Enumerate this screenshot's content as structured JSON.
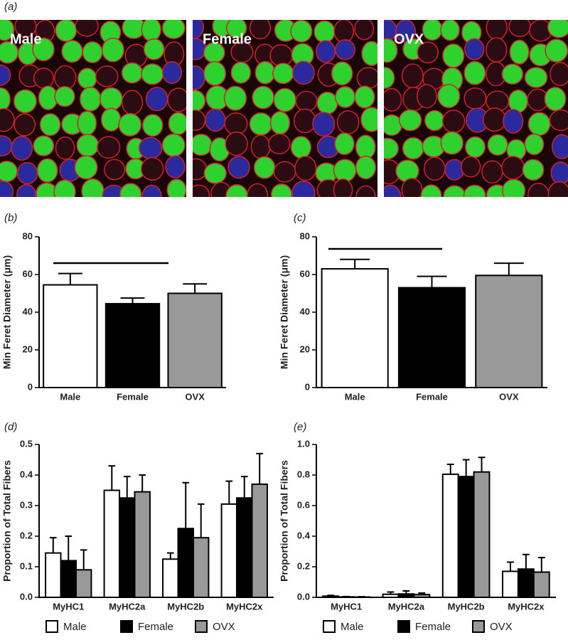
{
  "figure_label": "(a)",
  "images": [
    "Male",
    "Female",
    "OVX"
  ],
  "chart_data": [
    {
      "type": "bar",
      "panel_label": "(b)",
      "y_label": "Min Feret Diameter (μm)",
      "categories": [
        "Male",
        "Female",
        "OVX"
      ],
      "values": [
        54.5,
        44.5,
        50
      ],
      "errors": [
        6,
        3,
        5
      ],
      "colors": [
        "#ffffff",
        "#000000",
        "#999999"
      ],
      "ylim": [
        0,
        80
      ],
      "yticks": [
        0,
        20,
        40,
        60,
        80
      ]
    },
    {
      "type": "bar",
      "panel_label": "(c)",
      "y_label": "Min Feret Diameter (μm)",
      "categories": [
        "Male",
        "Female",
        "OVX"
      ],
      "values": [
        63,
        53,
        59.5
      ],
      "errors": [
        5,
        6,
        6.5
      ],
      "colors": [
        "#ffffff",
        "#000000",
        "#999999"
      ],
      "ylim": [
        0,
        80
      ],
      "yticks": [
        0,
        20,
        40,
        60,
        80
      ]
    },
    {
      "type": "bar",
      "panel_label": "(d)",
      "y_label": "Proportion of Total Fibers",
      "categories": [
        "MyHC1",
        "MyHC2a",
        "MyHC2b",
        "MyHC2x"
      ],
      "series": [
        {
          "name": "Male",
          "color": "#ffffff",
          "values": [
            0.145,
            0.35,
            0.125,
            0.305
          ],
          "errors": [
            0.05,
            0.08,
            0.02,
            0.075
          ]
        },
        {
          "name": "Female",
          "color": "#000000",
          "values": [
            0.12,
            0.325,
            0.225,
            0.325
          ],
          "errors": [
            0.08,
            0.07,
            0.15,
            0.07
          ]
        },
        {
          "name": "OVX",
          "color": "#999999",
          "values": [
            0.09,
            0.345,
            0.195,
            0.37
          ],
          "errors": [
            0.065,
            0.055,
            0.11,
            0.1
          ]
        }
      ],
      "ylim": [
        0,
        0.5
      ],
      "yticks": [
        {
          "value": 0,
          "label": "0.0"
        },
        0.1,
        0.2,
        0.3,
        0.4,
        0.5
      ],
      "legend": "bottom"
    },
    {
      "type": "bar",
      "panel_label": "(e)",
      "y_label": "Proportion of Total Fibers",
      "categories": [
        "MyHC1",
        "MyHC2a",
        "MyHC2b",
        "MyHC2x"
      ],
      "series": [
        {
          "name": "Male",
          "color": "#ffffff",
          "values": [
            0.008,
            0.02,
            0.805,
            0.17
          ],
          "errors": [
            0.005,
            0.015,
            0.065,
            0.06
          ]
        },
        {
          "name": "Female",
          "color": "#000000",
          "values": [
            0.003,
            0.022,
            0.79,
            0.185
          ],
          "errors": [
            0.002,
            0.02,
            0.11,
            0.095
          ]
        },
        {
          "name": "OVX",
          "color": "#999999",
          "values": [
            0.002,
            0.018,
            0.82,
            0.165
          ],
          "errors": [
            0.002,
            0.01,
            0.095,
            0.095
          ]
        }
      ],
      "ylim": [
        0,
        1
      ],
      "yticks": [
        {
          "value": 0,
          "label": "0.0"
        },
        0.2,
        0.4,
        0.6,
        0.8,
        {
          "value": 1,
          "label": "1.0"
        }
      ],
      "legend": "bottom"
    }
  ]
}
